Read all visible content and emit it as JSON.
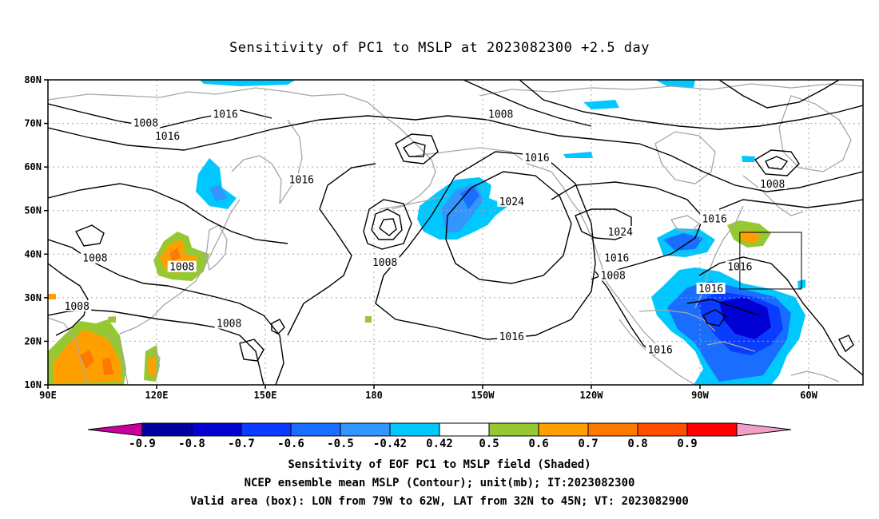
{
  "title": "Sensitivity of PC1 to MSLP at 2023082300 +2.5 day",
  "axes": {
    "y_ticks": [
      "80N",
      "70N",
      "60N",
      "50N",
      "40N",
      "30N",
      "20N",
      "10N"
    ],
    "x_ticks": [
      "90E",
      "120E",
      "150E",
      "180",
      "150W",
      "120W",
      "90W",
      "60W"
    ],
    "lat_range": [
      10,
      80
    ],
    "lon_range_east": [
      90,
      315
    ]
  },
  "contour_labels": [
    {
      "text": "1008",
      "lon": 117,
      "lat": 70
    },
    {
      "text": "1016",
      "lon": 123,
      "lat": 67
    },
    {
      "text": "1016",
      "lon": 139,
      "lat": 72
    },
    {
      "text": "1016",
      "lon": 160,
      "lat": 57
    },
    {
      "text": "1008",
      "lon": 103,
      "lat": 39
    },
    {
      "text": "1008",
      "lon": 127,
      "lat": 37
    },
    {
      "text": "1008",
      "lon": 98,
      "lat": 28
    },
    {
      "text": "1008",
      "lon": 140,
      "lat": 24
    },
    {
      "text": "1008",
      "lon": 183,
      "lat": 38
    },
    {
      "text": "1008",
      "lon": 215,
      "lat": 72
    },
    {
      "text": "1024",
      "lon": 218,
      "lat": 52
    },
    {
      "text": "1016",
      "lon": 225,
      "lat": 62
    },
    {
      "text": "1016",
      "lon": 218,
      "lat": 21
    },
    {
      "text": "1024",
      "lon": 248,
      "lat": 45
    },
    {
      "text": "1016",
      "lon": 247,
      "lat": 39
    },
    {
      "text": "1008",
      "lon": 246,
      "lat": 35
    },
    {
      "text": "1016",
      "lon": 259,
      "lat": 18
    },
    {
      "text": "1016",
      "lon": 274,
      "lat": 48
    },
    {
      "text": "1008",
      "lon": 290,
      "lat": 56
    },
    {
      "text": "1016",
      "lon": 281,
      "lat": 37
    },
    {
      "text": "1016",
      "lon": 273,
      "lat": 32
    }
  ],
  "colorbar": {
    "labels": [
      "-0.9",
      "-0.8",
      "-0.7",
      "-0.6",
      "-0.5",
      "-0.42",
      "0.42",
      "0.5",
      "0.6",
      "0.7",
      "0.8",
      "0.9"
    ],
    "colors": [
      "#c8009e",
      "#0000a0",
      "#0000d2",
      "#0a3cff",
      "#1a6eff",
      "#3296ff",
      "#00c8ff",
      "#ffffff",
      "#96c832",
      "#ffa000",
      "#ff7800",
      "#ff5000",
      "#ff0000",
      "#f0a0c8"
    ]
  },
  "valid_box": {
    "lon_from": "79W",
    "lon_to": "62W",
    "lat_from": "32N",
    "lat_to": "45N"
  },
  "captions": {
    "line1": "Sensitivity of EOF PC1 to MSLP field (Shaded)",
    "line2": "NCEP ensemble mean MSLP (Contour); unit(mb); IT:2023082300",
    "line3": "Valid area (box): LON from 79W to 62W, LAT from 32N to 45N; VT: 2023082900"
  }
}
